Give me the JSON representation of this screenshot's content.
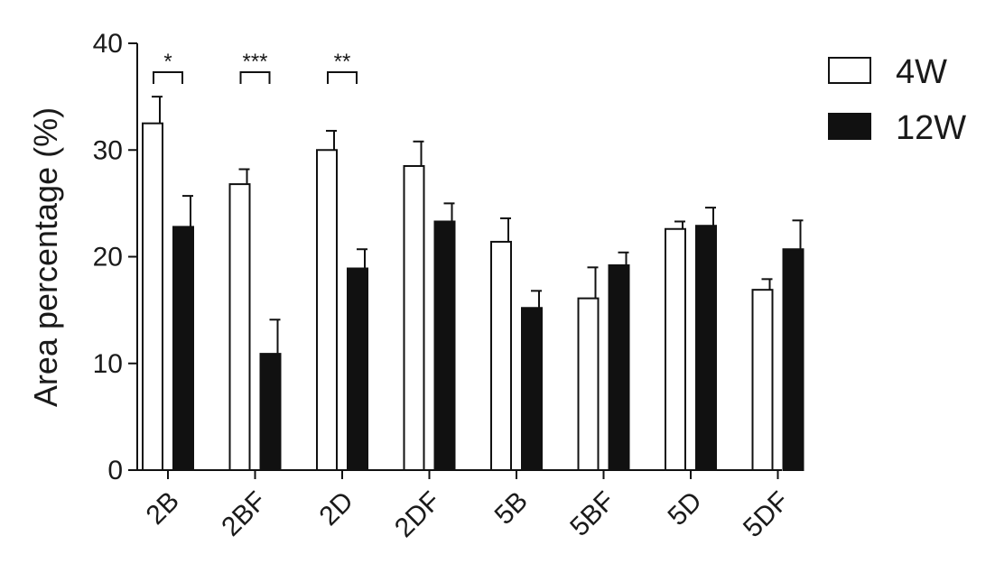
{
  "chart_data": {
    "type": "bar",
    "title": "",
    "xlabel": "",
    "ylabel": "Area percentage (%)",
    "ylim": [
      0,
      40
    ],
    "yticks": [
      0,
      10,
      20,
      30,
      40
    ],
    "grid": false,
    "legend_position": "top-right",
    "categories": [
      "2B",
      "2BF",
      "2D",
      "2DF",
      "5B",
      "5BF",
      "5D",
      "5DF"
    ],
    "series": [
      {
        "name": "4W",
        "fill": "#ffffff",
        "values": [
          32.5,
          26.8,
          30.0,
          28.5,
          21.4,
          16.1,
          22.6,
          16.9
        ],
        "errors": [
          2.5,
          1.4,
          1.8,
          2.3,
          2.2,
          2.9,
          0.7,
          1.0
        ]
      },
      {
        "name": "12W",
        "fill": "#111111",
        "values": [
          22.8,
          10.9,
          18.9,
          23.3,
          15.2,
          19.2,
          22.9,
          20.7
        ],
        "errors": [
          2.9,
          3.2,
          1.8,
          1.7,
          1.6,
          1.2,
          1.7,
          2.7
        ]
      }
    ],
    "annotations": [
      {
        "category": "2B",
        "label": "*"
      },
      {
        "category": "2BF",
        "label": "***"
      },
      {
        "category": "2D",
        "label": "**"
      }
    ]
  }
}
